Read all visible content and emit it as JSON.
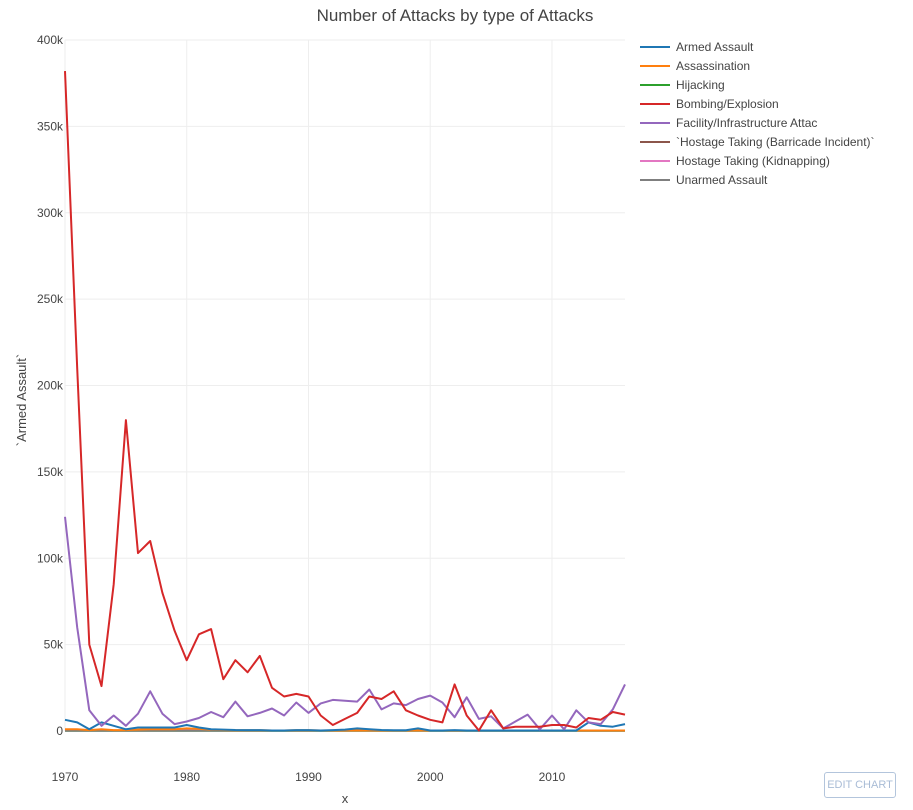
{
  "chart_data": {
    "type": "line",
    "title": "Number of Attacks by type of Attacks",
    "xlabel": "x",
    "ylabel": "`Armed Assault`",
    "xlim": [
      1970,
      2016
    ],
    "ylim": [
      0,
      400000
    ],
    "xticks": [
      1970,
      1980,
      1990,
      2000,
      2010
    ],
    "xtick_labels": [
      "1970",
      "1980",
      "1990",
      "2000",
      "2010"
    ],
    "yticks": [
      0,
      50000,
      100000,
      150000,
      200000,
      250000,
      300000,
      350000,
      400000
    ],
    "ytick_labels": [
      "0",
      "50k",
      "100k",
      "150k",
      "200k",
      "250k",
      "300k",
      "350k",
      "400k"
    ],
    "grid": true,
    "legend_position": "right",
    "x": [
      1970,
      1971,
      1972,
      1973,
      1974,
      1975,
      1976,
      1977,
      1978,
      1979,
      1980,
      1981,
      1982,
      1983,
      1984,
      1985,
      1986,
      1987,
      1988,
      1989,
      1990,
      1991,
      1992,
      1993,
      1994,
      1995,
      1996,
      1997,
      1998,
      1999,
      2000,
      2001,
      2002,
      2003,
      2004,
      2005,
      2006,
      2007,
      2008,
      2009,
      2010,
      2011,
      2012,
      2013,
      2014,
      2015,
      2016
    ],
    "series": [
      {
        "name": "Armed Assault",
        "color": "#1f77b4",
        "values": [
          6500,
          5000,
          1000,
          5000,
          3000,
          1000,
          2000,
          2000,
          2000,
          2000,
          3500,
          2000,
          1000,
          800,
          600,
          500,
          500,
          300,
          300,
          500,
          500,
          300,
          500,
          800,
          1500,
          1000,
          600,
          400,
          400,
          1500,
          300,
          300,
          500,
          300,
          300,
          300,
          300,
          300,
          300,
          300,
          300,
          300,
          300,
          5000,
          3000,
          2500,
          4000
        ]
      },
      {
        "name": "Assassination",
        "color": "#ff7f0e",
        "values": [
          1000,
          1000,
          500,
          1000,
          500,
          500,
          800,
          1000,
          1000,
          1000,
          1500,
          1200,
          800,
          500,
          400,
          400,
          400,
          300,
          300,
          400,
          400,
          300,
          300,
          300,
          300,
          300,
          300,
          300,
          300,
          300,
          300,
          300,
          300,
          300,
          300,
          300,
          300,
          300,
          300,
          300,
          300,
          300,
          300,
          300,
          300,
          300,
          300
        ]
      },
      {
        "name": "Hijacking",
        "color": "#2ca02c",
        "values": [
          200,
          200,
          100,
          100,
          100,
          100,
          100,
          100,
          100,
          100,
          100,
          100,
          100,
          100,
          100,
          100,
          100,
          100,
          100,
          100,
          100,
          100,
          100,
          100,
          100,
          100,
          100,
          100,
          100,
          100,
          100,
          100,
          100,
          100,
          100,
          100,
          100,
          100,
          100,
          100,
          100,
          100,
          100,
          100,
          100,
          100,
          100
        ]
      },
      {
        "name": "Bombing/Explosion",
        "color": "#d62728",
        "values": [
          382000,
          210000,
          50000,
          26000,
          85000,
          180000,
          103000,
          110000,
          80000,
          58000,
          41000,
          56000,
          59000,
          30000,
          41000,
          34000,
          43500,
          25000,
          20000,
          21500,
          20000,
          9000,
          3500,
          7000,
          10500,
          20000,
          18500,
          23000,
          12000,
          9000,
          6500,
          5000,
          27000,
          9000,
          300,
          12000,
          1500,
          2500,
          2500,
          2500,
          3500,
          3500,
          2000,
          7500,
          6500,
          11000,
          9500
        ]
      },
      {
        "name": "Facility/Infrastructure Attac",
        "color": "#9467bd",
        "values": [
          124000,
          60000,
          12000,
          3000,
          9000,
          3000,
          10000,
          23000,
          10000,
          4000,
          5500,
          7500,
          11000,
          8000,
          17000,
          8500,
          10500,
          13000,
          9000,
          16500,
          10500,
          16000,
          18000,
          17500,
          17000,
          24000,
          12500,
          16000,
          15000,
          18500,
          20500,
          16500,
          8000,
          19500,
          7000,
          8500,
          1500,
          5500,
          9500,
          1000,
          9000,
          1000,
          12000,
          5000,
          4000,
          12500,
          27000
        ]
      },
      {
        "name": "`Hostage Taking (Barricade Incident)`",
        "color": "#8c564b",
        "values": [
          500,
          500,
          300,
          300,
          300,
          300,
          300,
          300,
          300,
          300,
          300,
          300,
          300,
          300,
          300,
          300,
          300,
          300,
          300,
          300,
          300,
          300,
          300,
          300,
          300,
          300,
          300,
          300,
          300,
          300,
          300,
          300,
          300,
          300,
          300,
          300,
          300,
          300,
          300,
          300,
          300,
          300,
          300,
          300,
          300,
          300,
          300
        ]
      },
      {
        "name": "Hostage Taking (Kidnapping)",
        "color": "#e377c2",
        "values": [
          300,
          300,
          300,
          300,
          300,
          300,
          300,
          300,
          300,
          300,
          300,
          300,
          300,
          300,
          300,
          300,
          300,
          300,
          300,
          300,
          300,
          300,
          300,
          300,
          300,
          300,
          300,
          300,
          300,
          300,
          300,
          300,
          300,
          300,
          300,
          300,
          300,
          300,
          300,
          300,
          300,
          300,
          300,
          300,
          300,
          300,
          300
        ]
      },
      {
        "name": "Unarmed Assault",
        "color": "#7f7f7f",
        "values": [
          200,
          200,
          200,
          200,
          200,
          200,
          200,
          200,
          200,
          200,
          200,
          200,
          200,
          200,
          200,
          200,
          200,
          200,
          200,
          200,
          200,
          200,
          200,
          200,
          200,
          200,
          200,
          200,
          200,
          200,
          200,
          200,
          200,
          200,
          200,
          200,
          200,
          200,
          200,
          200,
          200,
          200,
          200,
          200,
          200,
          200,
          200
        ]
      }
    ]
  },
  "ui": {
    "edit_chart_label": "EDIT CHART"
  }
}
